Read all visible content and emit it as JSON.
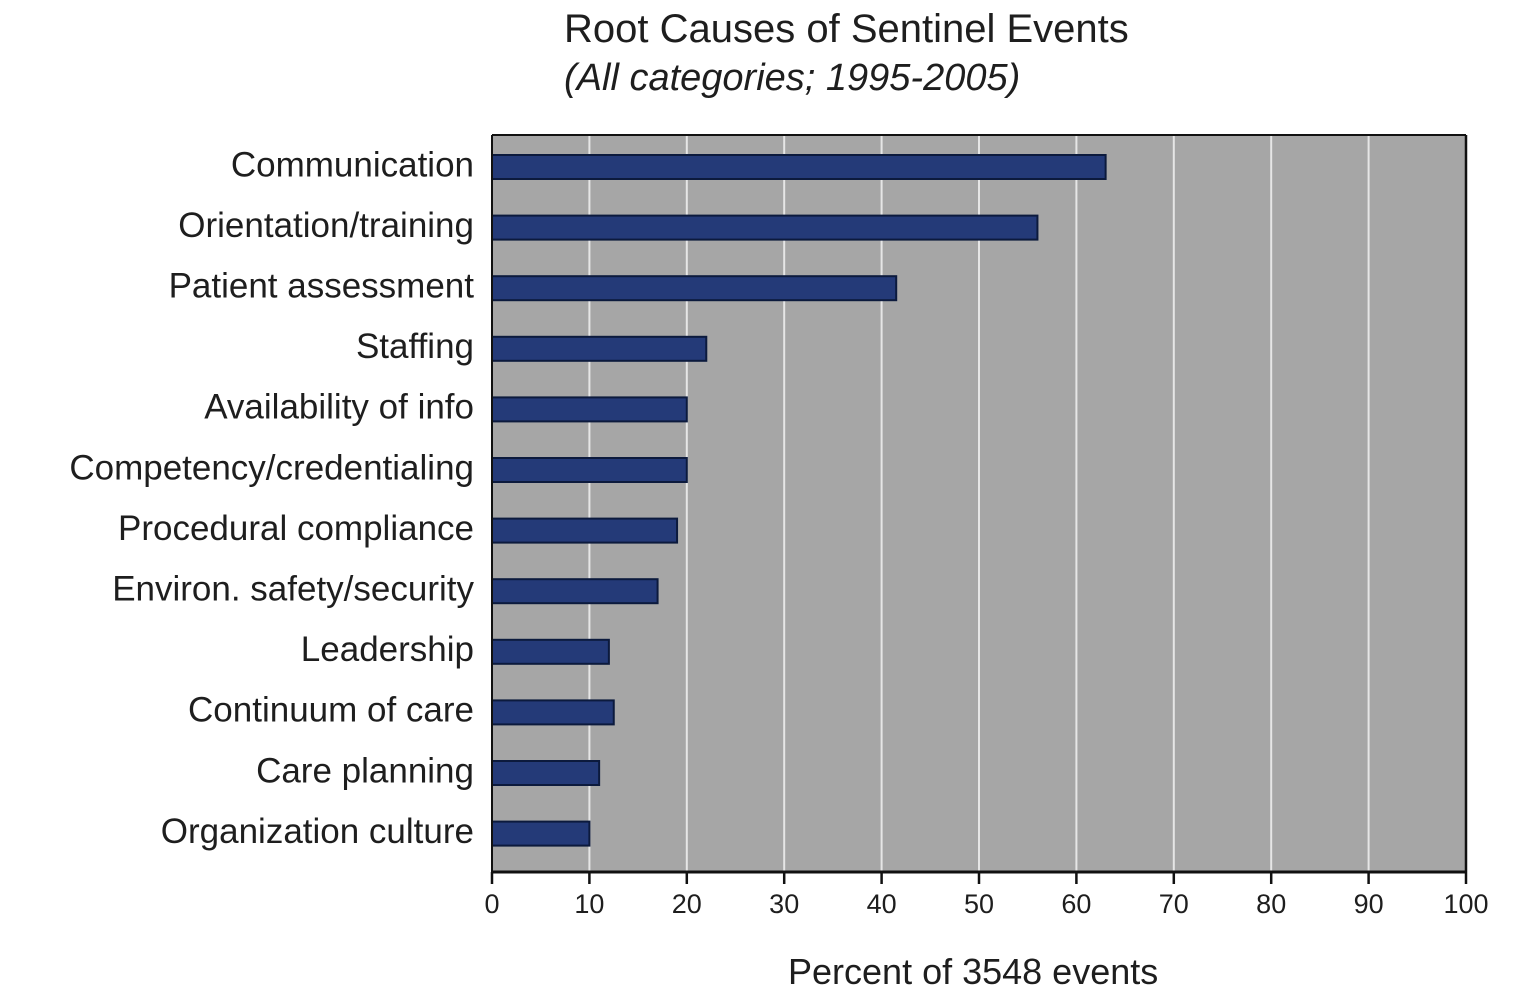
{
  "chart_data": {
    "type": "bar",
    "orientation": "horizontal",
    "title": "Root Causes of Sentinel Events",
    "subtitle": "(All categories; 1995-2005)",
    "xlabel": "Percent of 3548 events",
    "ylabel": "",
    "xlim": [
      0,
      100
    ],
    "xticks": [
      0,
      10,
      20,
      30,
      40,
      50,
      60,
      70,
      80,
      90,
      100
    ],
    "grid": "vertical",
    "categories": [
      "Communication",
      "Orientation/training",
      "Patient assessment",
      "Staffing",
      "Availability of info",
      "Competency/credentialing",
      "Procedural compliance",
      "Environ. safety/security",
      "Leadership",
      "Continuum of care",
      "Care planning",
      "Organization culture"
    ],
    "values": [
      63,
      56,
      41.5,
      22,
      20,
      20,
      19,
      17,
      12,
      12.5,
      11,
      10
    ],
    "colors": {
      "bar": "#243a78",
      "bar_edge": "#0c1a3d",
      "plot_background": "#a6a6a6",
      "grid": "#e6e6e6",
      "axis": "#111111"
    }
  }
}
